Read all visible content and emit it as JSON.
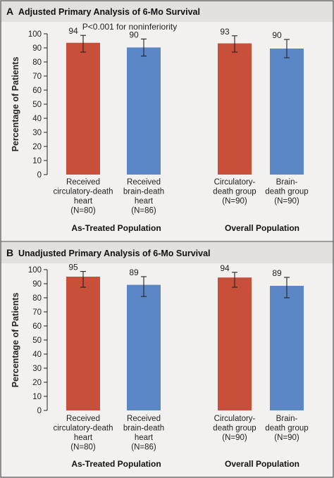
{
  "colors": {
    "circulatory": "#c8503a",
    "brain": "#5b87c7"
  },
  "chart_data": [
    {
      "type": "bar",
      "panel_letter": "A",
      "title": "Adjusted Primary Analysis of 6-Mo Survival",
      "ylabel": "Percentage of Patients",
      "xlabel": "",
      "ylim": [
        0,
        100
      ],
      "yticks": [
        0,
        10,
        20,
        30,
        40,
        50,
        60,
        70,
        80,
        90,
        100
      ],
      "grid": false,
      "annotation": "P<0.001 for noninferiority",
      "groups": [
        "As-Treated Population",
        "Overall Population"
      ],
      "bars": [
        {
          "group": 0,
          "label_lines": [
            "Received",
            "circulatory-death",
            "heart",
            "(N=80)"
          ],
          "value": 93.6,
          "value_label": "94",
          "err_low": 87.0,
          "err_high": 98.9,
          "color_key": "circulatory"
        },
        {
          "group": 0,
          "label_lines": [
            "Received",
            "brain-death",
            "heart",
            "(N=86)"
          ],
          "value": 90.3,
          "value_label": "90",
          "err_low": 84.2,
          "err_high": 96.3,
          "color_key": "brain"
        },
        {
          "group": 1,
          "label_lines": [
            "Circulatory-",
            "death group",
            "(N=90)"
          ],
          "value": 93.2,
          "value_label": "93",
          "err_low": 87.0,
          "err_high": 98.6,
          "color_key": "circulatory"
        },
        {
          "group": 1,
          "label_lines": [
            "Brain-",
            "death group",
            "(N=90)"
          ],
          "value": 89.5,
          "value_label": "90",
          "err_low": 83.0,
          "err_high": 96.0,
          "color_key": "brain"
        }
      ]
    },
    {
      "type": "bar",
      "panel_letter": "B",
      "title": "Unadjusted Primary Analysis of 6-Mo Survival",
      "ylabel": "Percentage of Patients",
      "xlabel": "",
      "ylim": [
        0,
        100
      ],
      "yticks": [
        0,
        10,
        20,
        30,
        40,
        50,
        60,
        70,
        80,
        90,
        100
      ],
      "grid": false,
      "groups": [
        "As-Treated Population",
        "Overall Population"
      ],
      "bars": [
        {
          "group": 0,
          "label_lines": [
            "Received",
            "circulatory-death",
            "heart",
            "(N=80)"
          ],
          "value": 95.0,
          "value_label": "95",
          "err_low": 87.5,
          "err_high": 98.7,
          "color_key": "circulatory"
        },
        {
          "group": 0,
          "label_lines": [
            "Received",
            "brain-death",
            "heart",
            "(N=86)"
          ],
          "value": 89.2,
          "value_label": "89",
          "err_low": 80.9,
          "err_high": 95.0,
          "color_key": "brain"
        },
        {
          "group": 1,
          "label_lines": [
            "Circulatory-",
            "death group",
            "(N=90)"
          ],
          "value": 94.4,
          "value_label": "94",
          "err_low": 87.5,
          "err_high": 98.1,
          "color_key": "circulatory"
        },
        {
          "group": 1,
          "label_lines": [
            "Brain-",
            "death group",
            "(N=90)"
          ],
          "value": 88.5,
          "value_label": "89",
          "err_low": 80.0,
          "err_high": 94.5,
          "color_key": "brain"
        }
      ]
    }
  ]
}
